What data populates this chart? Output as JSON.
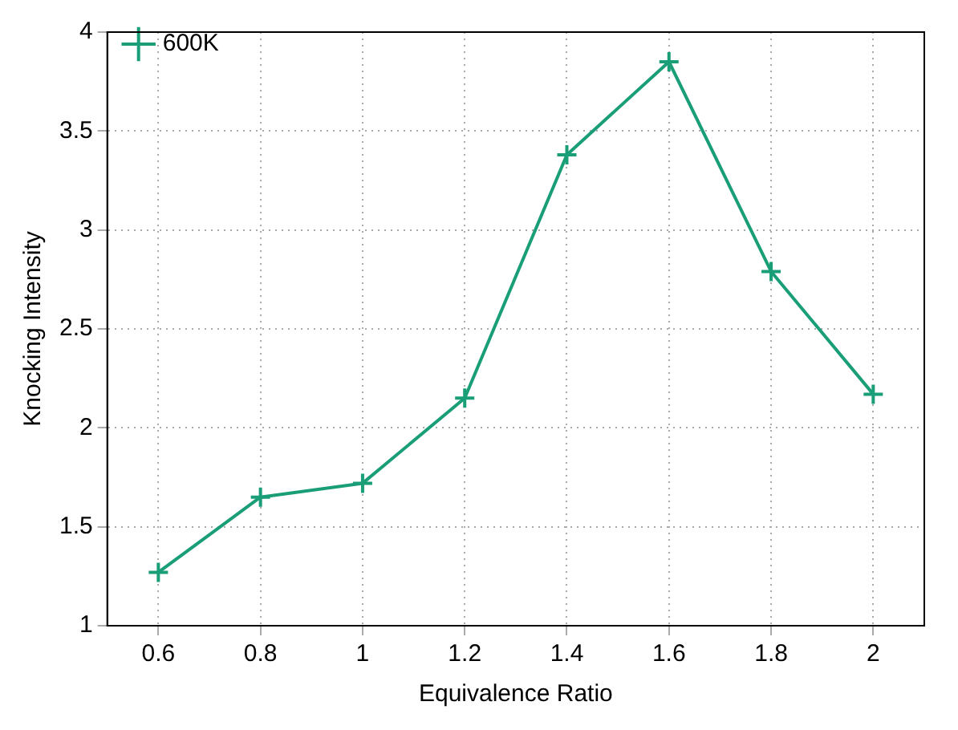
{
  "chart_data": {
    "type": "line",
    "xlabel": "Equivalence Ratio",
    "ylabel": "Knocking Intensity",
    "x": [
      0.6,
      0.8,
      1,
      1.2,
      1.4,
      1.6,
      1.8,
      2
    ],
    "series": [
      {
        "name": "600K",
        "color": "#1a9e77",
        "values": [
          1.27,
          1.65,
          1.72,
          2.15,
          3.38,
          3.85,
          2.79,
          2.17
        ]
      }
    ],
    "xlim": [
      0.5,
      2.1
    ],
    "xticks": [
      0.6,
      0.8,
      1,
      1.2,
      1.4,
      1.6,
      1.8,
      2
    ],
    "ylim": [
      1,
      4
    ],
    "yticks": [
      1,
      1.5,
      2,
      2.5,
      3,
      3.5,
      4
    ],
    "grid": true,
    "legend": "top left",
    "marker": "cross",
    "line_style": "solid"
  }
}
